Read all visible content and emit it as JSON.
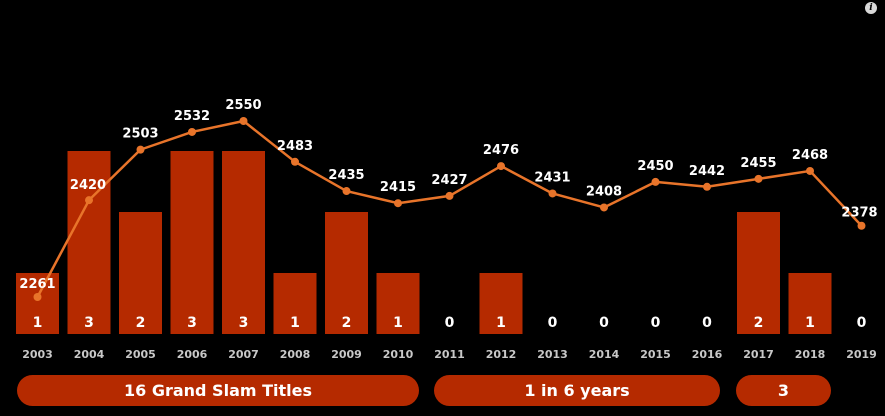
{
  "chart_data": {
    "type": "bar",
    "categories": [
      "2003",
      "2004",
      "2005",
      "2006",
      "2007",
      "2008",
      "2009",
      "2010",
      "2011",
      "2012",
      "2013",
      "2014",
      "2015",
      "2016",
      "2017",
      "2018",
      "2019"
    ],
    "bars": [
      1,
      3,
      2,
      3,
      3,
      1,
      2,
      1,
      0,
      1,
      0,
      0,
      0,
      0,
      2,
      1,
      0
    ],
    "line": [
      2261,
      2420,
      2503,
      2532,
      2550,
      2483,
      2435,
      2415,
      2427,
      2476,
      2431,
      2408,
      2450,
      2442,
      2455,
      2468,
      2378
    ],
    "colors": {
      "bar": "#b52a00",
      "line": "#e8742a",
      "label": "#ffffff",
      "tick": "#c8c8c8",
      "background": "#000000"
    },
    "grid": false
  },
  "groups": [
    {
      "label": "16 Grand Slam Titles"
    },
    {
      "label": "1 in 6 years"
    },
    {
      "label": "3"
    }
  ],
  "icons": {
    "info": "i"
  }
}
